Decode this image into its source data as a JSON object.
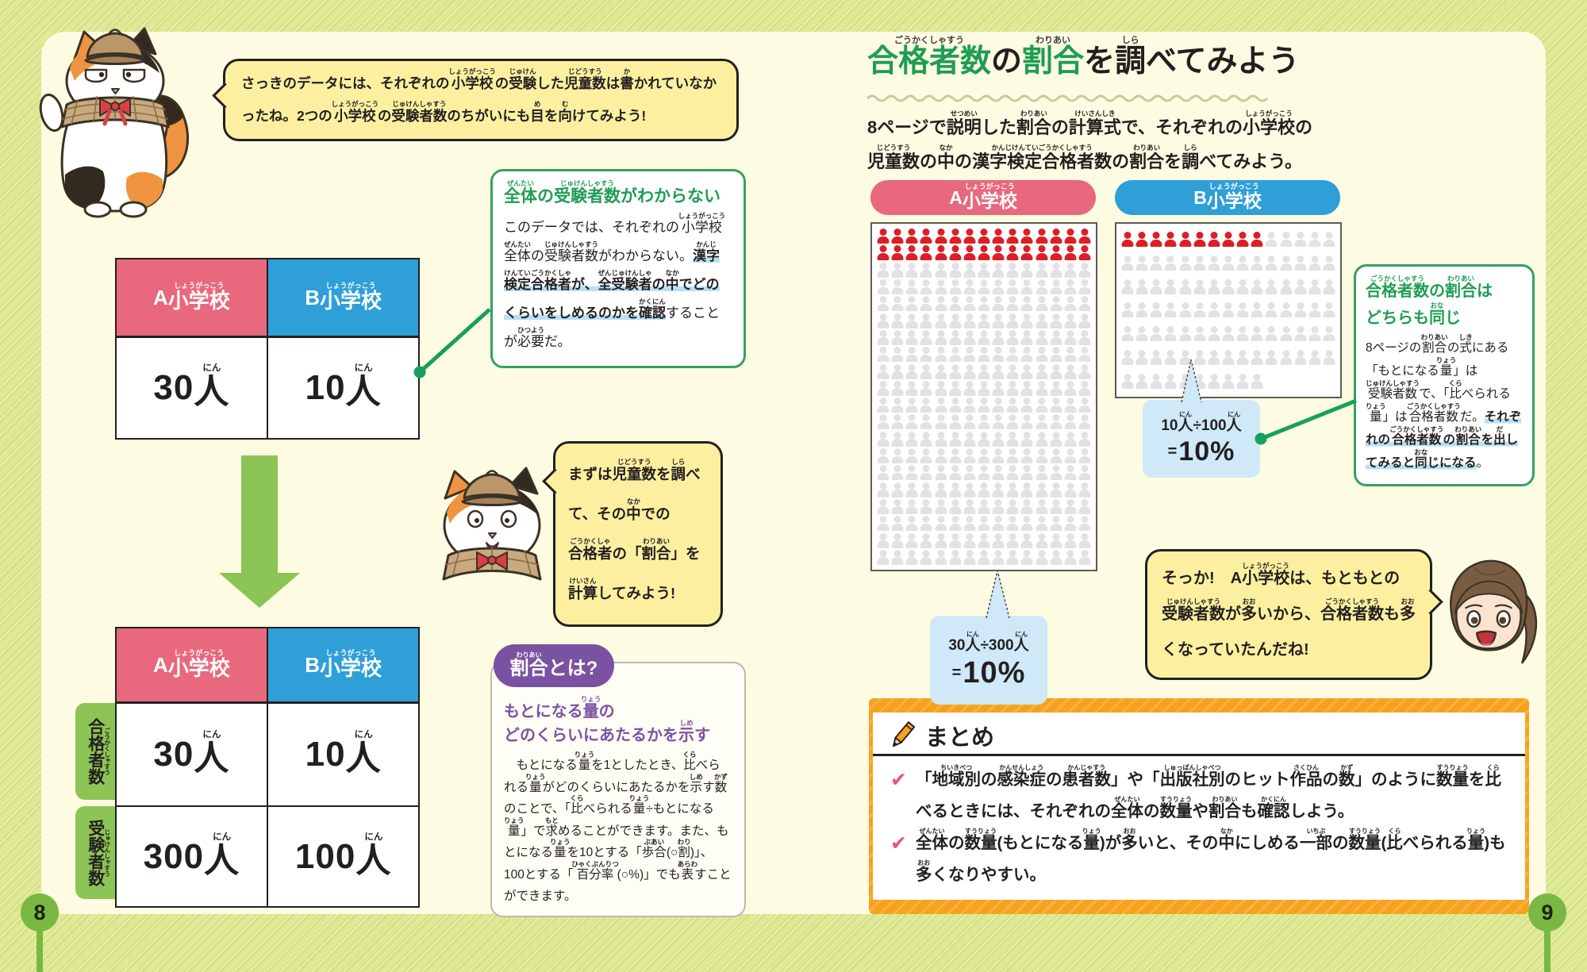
{
  "colors": {
    "school_a_pink": "#e8687e",
    "school_b_blue": "#2f9fd8",
    "accent_green": "#1f9d53",
    "connector_green": "#17a05b",
    "highlight_blue": "#b8e0f4",
    "purple": "#7b52a1",
    "pictogram_red": "#dc1e26",
    "pictogram_gray": "#e2e2e2",
    "callout_blue": "#cfe9f8",
    "summary_orange": "#f6a21c",
    "check_pink": "#e8537e",
    "bubble_yellow": "#fcf0a0",
    "page_circle_green": "#79b842",
    "arrow_green": "#8cc455"
  },
  "page_left": {
    "page_number": "8",
    "cat_bubble_intro": "さっきのデータには、それぞれの{小学校|しょうがっこう}の{受験|じゅけん}した{児童数|じどうすう}は{書|か}かれていなかったね。2つの{小学校|しょうがっこう}の{受験者数|じゅけんしゃすう}のちがいにも{目|め}を{向|む}けてみよう!",
    "table_simple": {
      "headers": [
        "A {小学校|しょうがっこう}",
        "B {小学校|しょうがっこう}"
      ],
      "values": [
        "30{人|にん}",
        "10{人|にん}"
      ]
    },
    "note_unknown": {
      "title": "{全体|ぜんたい}の{受験者数|じゅけんしゃすう}がわからない",
      "body": "このデータでは、それぞれの{小学校|しょうがっこう}{全体|ぜんたい}の{受験者数|じゅけんしゃすう}がわからない。[[{漢字|かんじ}{検定|けんてい}{合格者|ごうかくしゃ}が、{全受験者|ぜんじゅけんしゃ}の{中|なか}でどのくらいをしめるのかを{確認|かくにん}]]することが{必要|ひつよう}だ。"
    },
    "cat_bubble_plan": "まずは{児童数|じどうすう}を{調|しら}べて、その{中|なか}での{合格者|ごうかくしゃ}の「{割合|わりあい}」を{計算|けいさん}してみよう!",
    "table_detailed": {
      "headers": [
        "A {小学校|しょうがっこう}",
        "B {小学校|しょうがっこう}"
      ],
      "row_labels": [
        "{合格者数|ごうかくしゃすう}",
        "{受験者数|じゅけんしゃすう}"
      ],
      "rows": [
        [
          "30{人|にん}",
          "10{人|にん}"
        ],
        [
          "300{人|にん}",
          "100{人|にん}"
        ]
      ]
    },
    "ratio_box": {
      "badge": "{割合|わりあい}とは?",
      "heading": "もとになる{量|りょう}の\nどのくらいにあたるかを{示|しめ}す",
      "body": "　もとになる{量|りょう}を1としたとき、{比|くら}べられる{量|りょう}がどのくらいにあたるかを{示|しめ}す{数|かず}のことで、「{比|くら}べられる{量|りょう}÷もとになる{量|りょう}」で{求|もと}めることができます。また、もとになる{量|りょう}を10とする「{歩合|ぶあい}(○{割|わり})」、100とする「{百分率|ひゃくぶんりつ}(○%)」でも{表|あらわ}すことができます。"
    }
  },
  "page_right": {
    "page_number": "9",
    "title_parts": [
      {
        "text": "{合格者数|ごうかくしゃすう}",
        "green": true
      },
      {
        "text": "の",
        "green": false
      },
      {
        "text": "{割合|わりあい}",
        "green": true
      },
      {
        "text": "を{調|しら}べてみよう",
        "green": false
      }
    ],
    "intro": "8ページで{説明|せつめい}した{割合|わりあい}の{計算式|けいさんしき}で、それぞれの{小学校|しょうがっこう}の\n{児童数|じどうすう}の{中|なか}の{漢字検定合格者数|かんじけんていごうかくしゃすう}の{割合|わりあい}を{調|しら}べてみよう。",
    "pictographs": [
      {
        "school": "A {小学校|しょうがっこう}",
        "columns": 15,
        "total": 300,
        "highlighted": 30,
        "callout_formula": "30{人|にん}÷300{人|にん}",
        "callout_equals": "=",
        "callout_result": "10%"
      },
      {
        "school": "B {小学校|しょうがっこう}",
        "columns": 15,
        "total": 100,
        "highlighted": 10,
        "callout_formula": "10{人|にん}÷100{人|にん}",
        "callout_equals": "=",
        "callout_result": "10%"
      }
    ],
    "note_same": {
      "title": "{合格者数|ごうかくしゃすう}の{割合|わりあい}は\nどちらも{同|おな}じ",
      "body": "8ページの{割合|わりあい}の{式|しき}にある「もとになる{量|りょう}」は{受験者数|じゅけんしゃすう}で、「{比|くら}べられる{量|りょう}」は{合格者数|ごうかくしゃすう}だ。[[それぞれの{合格者数|ごうかくしゃすう}の{割合|わりあい}を{出|だ}してみると{同|おな}じになる]]。"
    },
    "girl_bubble": "そっか!　A{小学校|しょうがっこう}は、もともとの{受験者数|じゅけんしゃすう}が{多|おお}いから、{合格者数|ごうかくしゃすう}も{多|おお}くなっていたんだね!",
    "summary": {
      "title": "まとめ",
      "points": [
        "「{地域別|ちいきべつ}の{感染症|かんせんしょう}の{患者数|かんじゃすう}」や「{出版社別|しゅっぱんしゃべつ}のヒット{作品|さくひん}の{数|かず}」のように{数量|すうりょう}を{比|くら}べるときには、それぞれの{全体|ぜんたい}の{数量|すうりょう}や{割合|わりあい}も{確認|かくにん}しよう。",
        "{全体|ぜんたい}の{数量|すうりょう}(もとになる{量|りょう})が{多|おお}いと、その{中|なか}にしめる{一部|いちぶ}の{数量|すうりょう}({比|くら}べられる{量|りょう})も{多|おお}くなりやすい。"
      ]
    }
  }
}
